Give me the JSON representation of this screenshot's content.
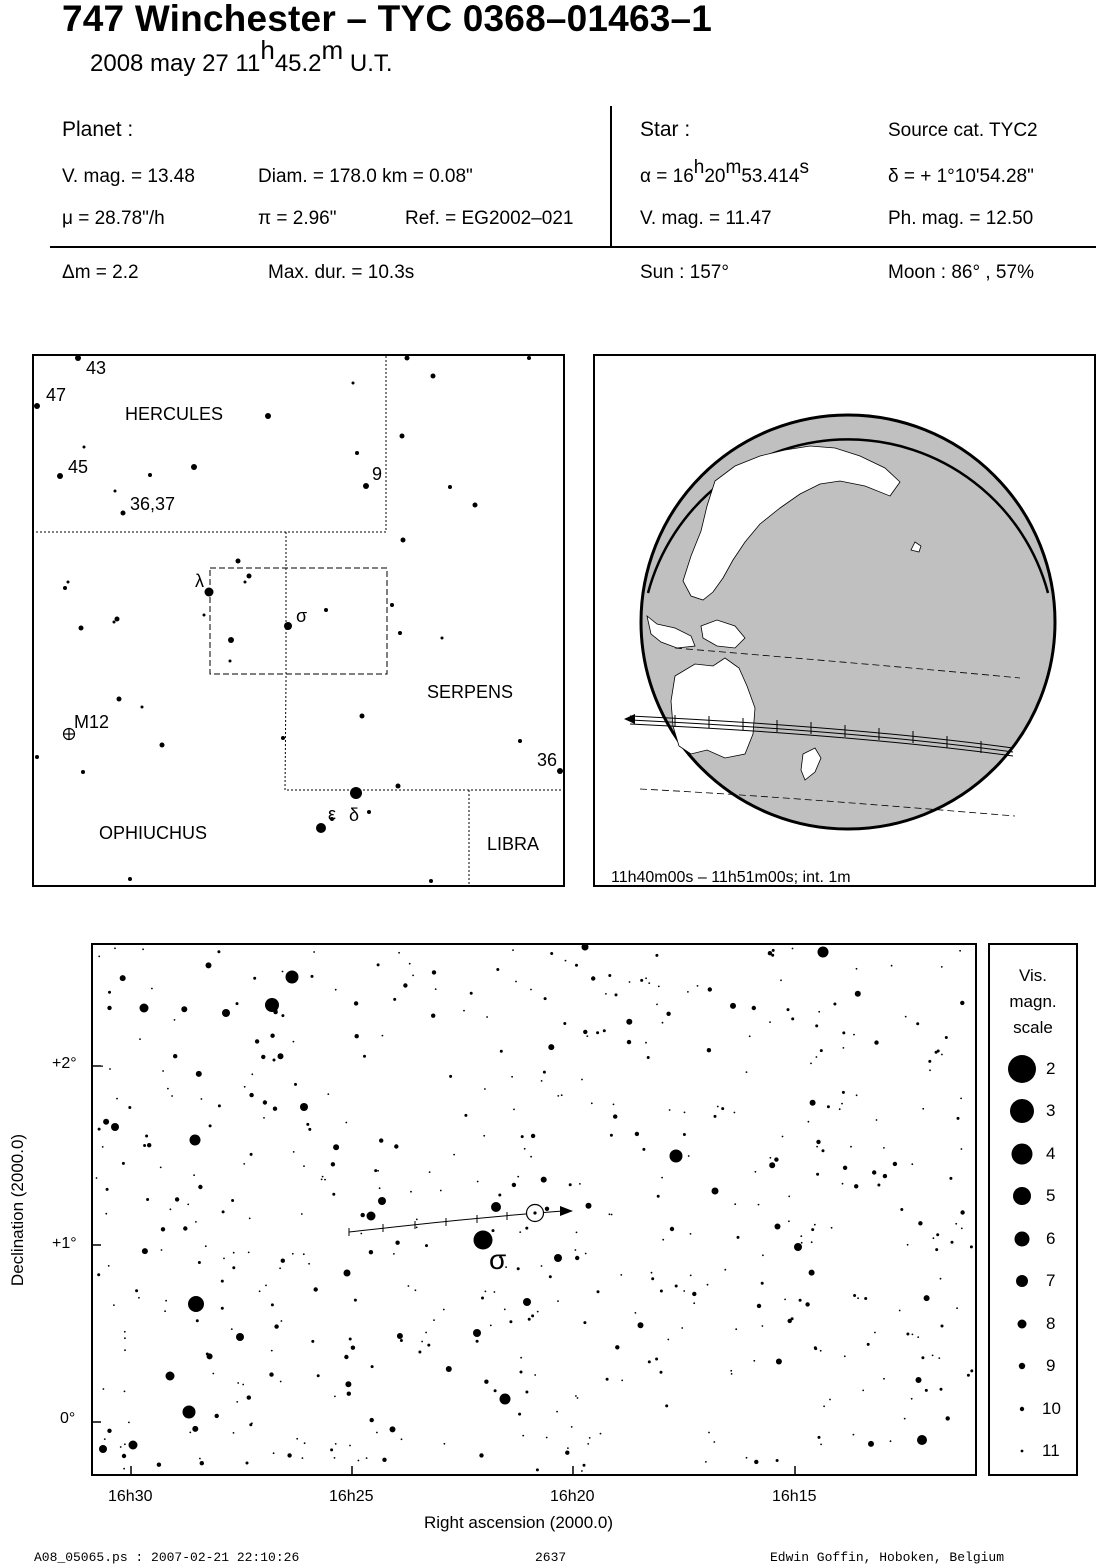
{
  "header": {
    "title": "747 Winchester  –  TYC 0368–01463–1",
    "date": "2008 may 27  11",
    "time_h_sup": "h",
    "time_min": "45.2",
    "time_m_sup": "m",
    "time_suffix": " U.T."
  },
  "planet": {
    "heading": "Planet :",
    "vmag": "V. mag. = 13.48",
    "diam": "Diam. = 178.0 km = 0.08\"",
    "mu": "μ =  28.78\"/h",
    "pi": "π =  2.96\"",
    "ref": "Ref. = EG2002–021"
  },
  "star": {
    "heading": "Star :",
    "source": "Source cat.  TYC2",
    "ra_prefix": "α = 16",
    "ra_h": "h",
    "ra_min": "20",
    "ra_m": "m",
    "ra_sec": "53.414",
    "ra_s": "s",
    "dec": "δ = + 1°10'54.28\"",
    "vmag": "V. mag. = 11.47",
    "phmag": "Ph. mag. = 12.50"
  },
  "event": {
    "dm": "Δm = 2.2",
    "maxdur": "Max. dur. = 10.3s",
    "sun": "Sun : 157°",
    "moon": "Moon :  86° , 57%"
  },
  "finder_chart": {
    "constellations": [
      "HERCULES",
      "SERPENS",
      "OPHIUCHUS",
      "LIBRA"
    ],
    "labels": [
      "43",
      "47",
      "45",
      "36,37",
      "9",
      "36",
      "M12",
      "λ",
      "σ",
      "ε",
      "δ"
    ]
  },
  "globe": {
    "caption": "11h40m00s – 11h51m00s; int.  1m"
  },
  "star_chart": {
    "y_axis_label": "Declination (2000.0)",
    "x_axis_label": "Right ascension (2000.0)",
    "y_ticks": [
      "+2°",
      "+1°",
      "0°"
    ],
    "x_ticks": [
      "16h30",
      "16h25",
      "16h20",
      "16h15"
    ],
    "target_label": "σ"
  },
  "legend": {
    "title_lines": [
      "Vis.",
      "magn.",
      "scale"
    ],
    "magnitudes": [
      "2",
      "3",
      "4",
      "5",
      "6",
      "7",
      "8",
      "9",
      "10",
      "11"
    ]
  },
  "footer": {
    "file": "A08_05065.ps : 2007-02-21 22:10:26",
    "number": "2637",
    "author": "Edwin Goffin, Hoboken, Belgium"
  },
  "colors": {
    "ink": "#000000",
    "land": "#c0c0c0",
    "paper": "#ffffff"
  }
}
